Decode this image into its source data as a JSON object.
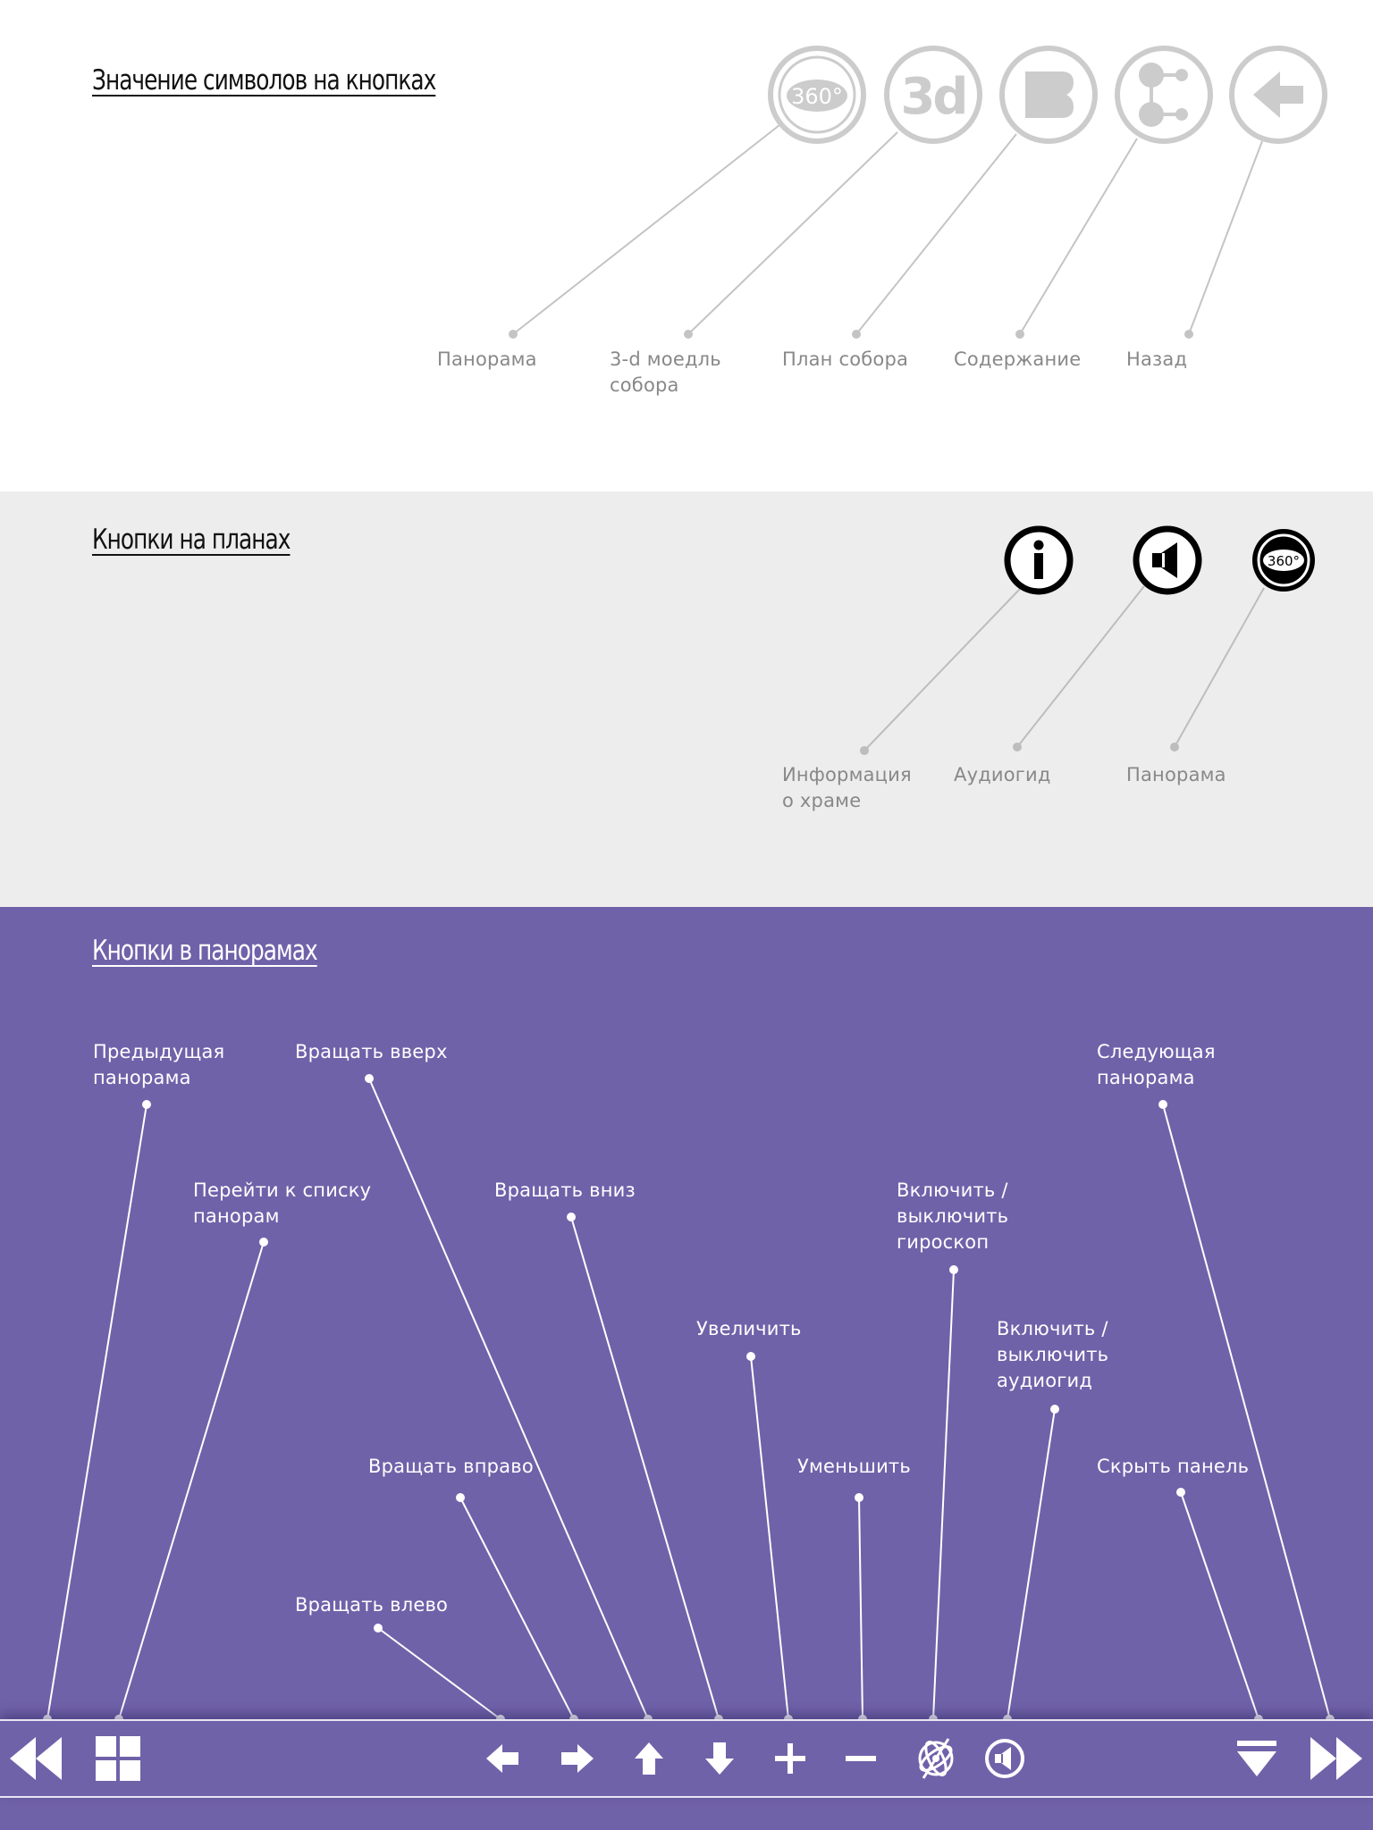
{
  "colors": {
    "accent_purple": "#7062a9",
    "light_gray_section": "#ededed",
    "icon_gray": "#cccccc",
    "label_gray": "#888888"
  },
  "symbols_section": {
    "title": "Значение символов на кнопках",
    "buttons": [
      {
        "icon": "panorama-360-icon",
        "label": "Панорама"
      },
      {
        "icon": "3d-model-icon",
        "label": "3-d моедль собора"
      },
      {
        "icon": "cathedral-plan-icon",
        "label": "План собора"
      },
      {
        "icon": "contents-icon",
        "label": "Содержание"
      },
      {
        "icon": "back-arrow-icon",
        "label": "Назад"
      }
    ],
    "icon_text_360": "360°",
    "icon_text_3d": "3d"
  },
  "plans_section": {
    "title": "Кнопки на планах",
    "buttons": [
      {
        "icon": "info-icon",
        "label": "Информация о храме"
      },
      {
        "icon": "audio-guide-icon",
        "label": "Аудиогид"
      },
      {
        "icon": "panorama-360-icon",
        "label": "Панорама"
      }
    ],
    "icon_text_360": "360°"
  },
  "panorama_section": {
    "title": "Кнопки в панорамах",
    "labels": {
      "prev": "Предыдущая панорама",
      "list": "Перейти к списку панорам",
      "rotate_up": "Вращать вверх",
      "rotate_down": "Вращать вниз",
      "rotate_right": "Вращать вправо",
      "rotate_left": "Вращать влево",
      "zoom_in": "Увеличить",
      "zoom_out": "Уменьшить",
      "gyroscope": "Включить / выключить гироскоп",
      "audio": "Включить / выключить аудиогид",
      "hide_panel": "Скрыть панель",
      "next": "Следующая панорама"
    },
    "toolbar_icons": [
      "previous-panorama-icon",
      "panorama-list-icon",
      "rotate-left-icon",
      "rotate-right-icon",
      "rotate-up-icon",
      "rotate-down-icon",
      "zoom-in-icon",
      "zoom-out-icon",
      "gyroscope-icon",
      "audio-icon",
      "hide-panel-icon",
      "next-panorama-icon"
    ]
  }
}
